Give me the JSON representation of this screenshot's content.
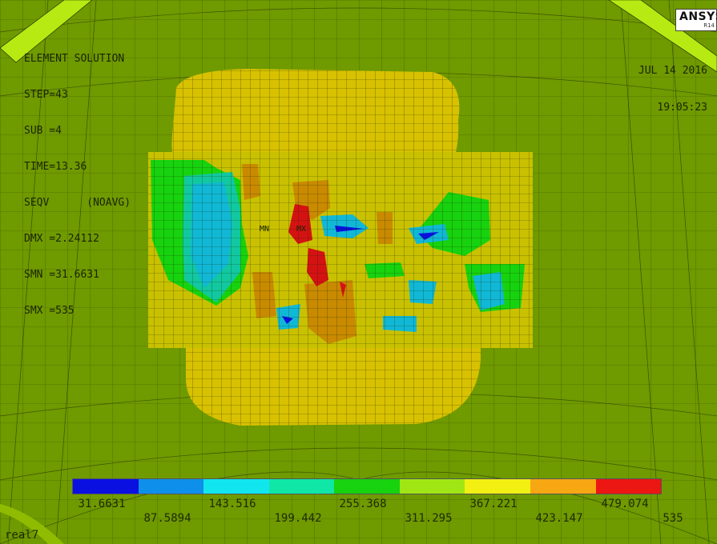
{
  "info_block": {
    "lines": [
      "ELEMENT SOLUTION",
      "STEP=43",
      "SUB =4",
      "TIME=13.36",
      "SEQV      (NOAVG)",
      "DMX =2.24112",
      "SMN =31.6631",
      "SMX =535"
    ]
  },
  "date_stamp": {
    "date": "JUL 14 2016",
    "time": "19:05:23"
  },
  "logo": {
    "brand": "ANSYS",
    "version": "R14"
  },
  "node_labels": {
    "min": "MN",
    "max": "MX"
  },
  "legend": {
    "colors": [
      "#0a10e0",
      "#0e8fea",
      "#11e6ee",
      "#10e7a6",
      "#17d20e",
      "#9fe614",
      "#f2ef12",
      "#f7a712",
      "#ec1612"
    ],
    "labels_top": [
      "31.6631",
      "143.516",
      "255.368",
      "367.221",
      "479.074"
    ],
    "labels_bottom": [
      "87.5894",
      "199.442",
      "311.295",
      "423.147",
      "535"
    ]
  },
  "window_label": "real7"
}
